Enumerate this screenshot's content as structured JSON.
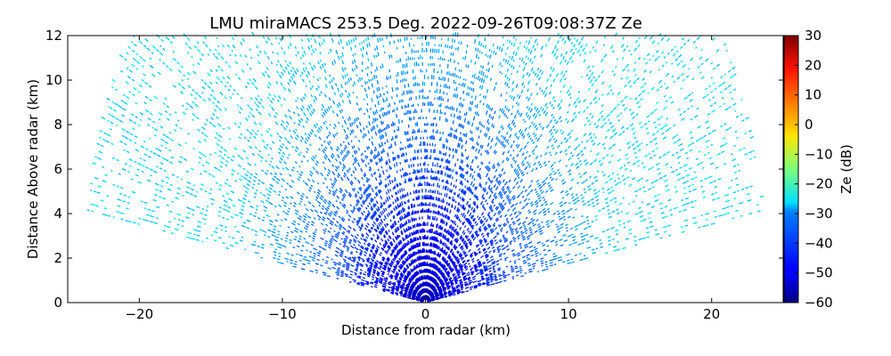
{
  "chart_data": {
    "type": "heatmap",
    "title": "LMU miraMACS 253.5 Deg. 2022-09-26T09:08:37Z  Ze",
    "xlabel": "Distance from radar (km)",
    "ylabel": "Distance Above radar  (km)",
    "xlim": [
      -25,
      25
    ],
    "ylim": [
      0,
      12
    ],
    "xticks": [
      "−20",
      "−10",
      "0",
      "10",
      "20"
    ],
    "xtick_values": [
      -20,
      -10,
      0,
      10,
      20
    ],
    "yticks": [
      "0",
      "2",
      "4",
      "6",
      "8",
      "10",
      "12"
    ],
    "ytick_values": [
      0,
      2,
      4,
      6,
      8,
      10,
      12
    ],
    "scan": {
      "max_range_km": 24,
      "elevation_start_deg": 10,
      "elevation_end_deg": 170,
      "reflectivity_near_dB": -56,
      "reflectivity_far_dB": -30
    },
    "colorbar": {
      "label": "Ze (dB)",
      "min": -60,
      "max": 30,
      "ticks": [
        "30",
        "20",
        "10",
        "0",
        "−10",
        "−20",
        "−30",
        "−40",
        "−50",
        "−60"
      ],
      "tick_values": [
        30,
        20,
        10,
        0,
        -10,
        -20,
        -30,
        -40,
        -50,
        -60
      ],
      "colormap": "jet"
    },
    "grid": false
  }
}
